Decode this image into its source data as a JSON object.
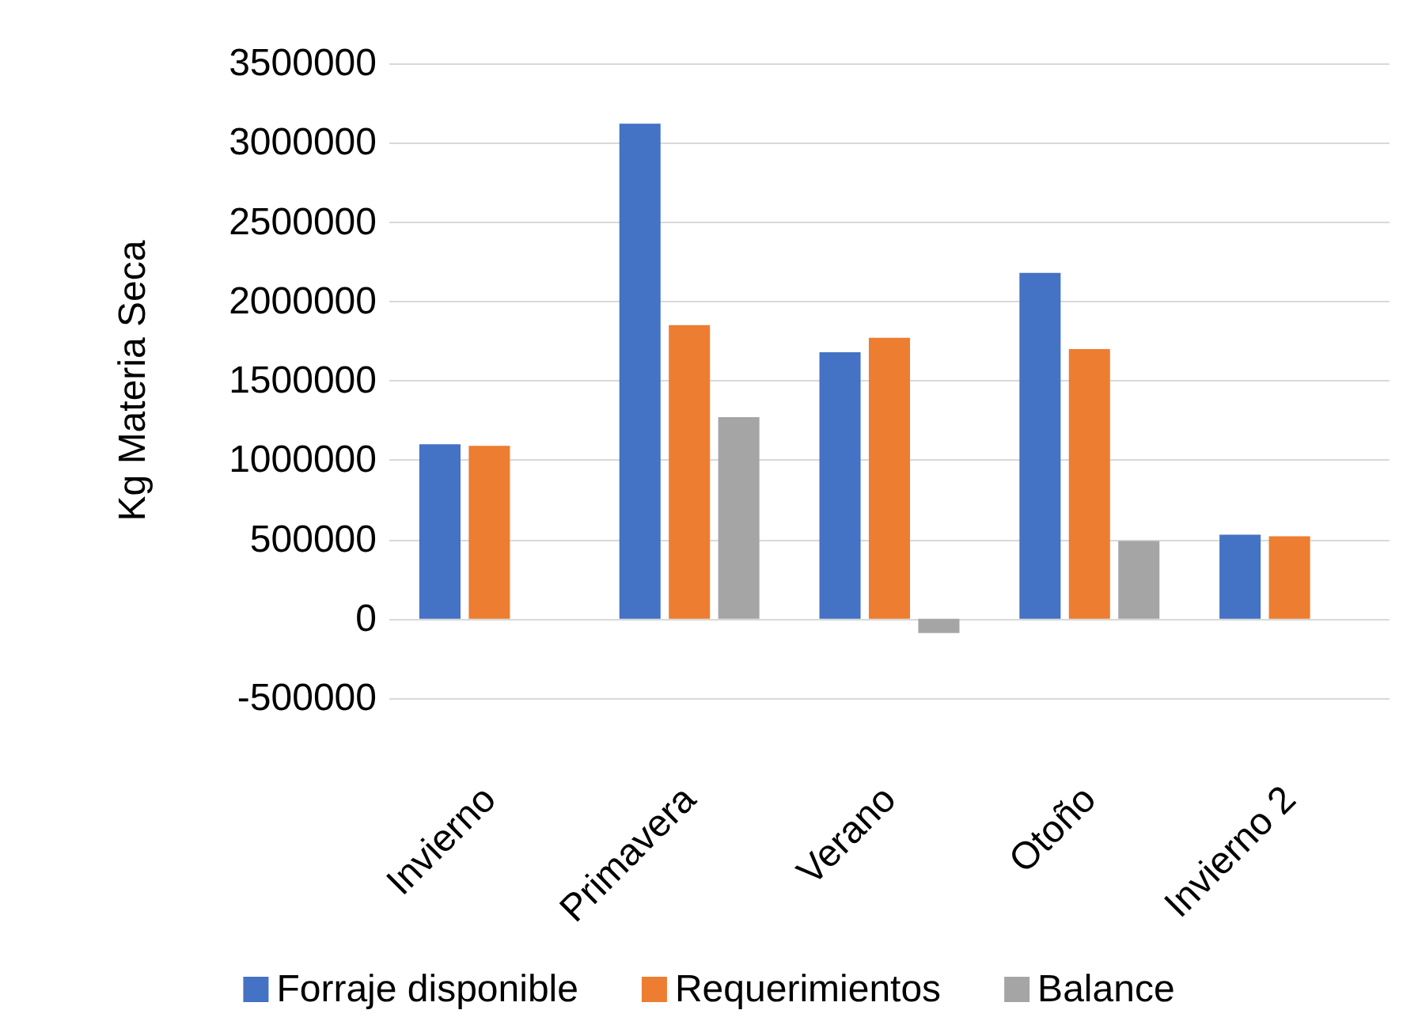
{
  "chart_data": {
    "type": "bar",
    "ylabel": "Kg Materia Seca",
    "categories": [
      "Invierno",
      "Primavera",
      "Verano",
      "Otoño",
      "Invierno 2"
    ],
    "series": [
      {
        "name": "Forraje disponible",
        "color": "#4472c4",
        "values": [
          1100000,
          3120000,
          1680000,
          2180000,
          530000
        ]
      },
      {
        "name": "Requerimientos",
        "color": "#ed7d31",
        "values": [
          1090000,
          1850000,
          1770000,
          1700000,
          520000
        ]
      },
      {
        "name": "Balance",
        "color": "#a5a5a5",
        "values": [
          null,
          1270000,
          -90000,
          490000,
          null
        ]
      }
    ],
    "ylim": [
      -500000,
      3500000
    ],
    "yticks": [
      -500000,
      0,
      500000,
      1000000,
      1500000,
      2000000,
      2500000,
      3000000,
      3500000
    ],
    "grid": "y",
    "legend": "bottom"
  }
}
